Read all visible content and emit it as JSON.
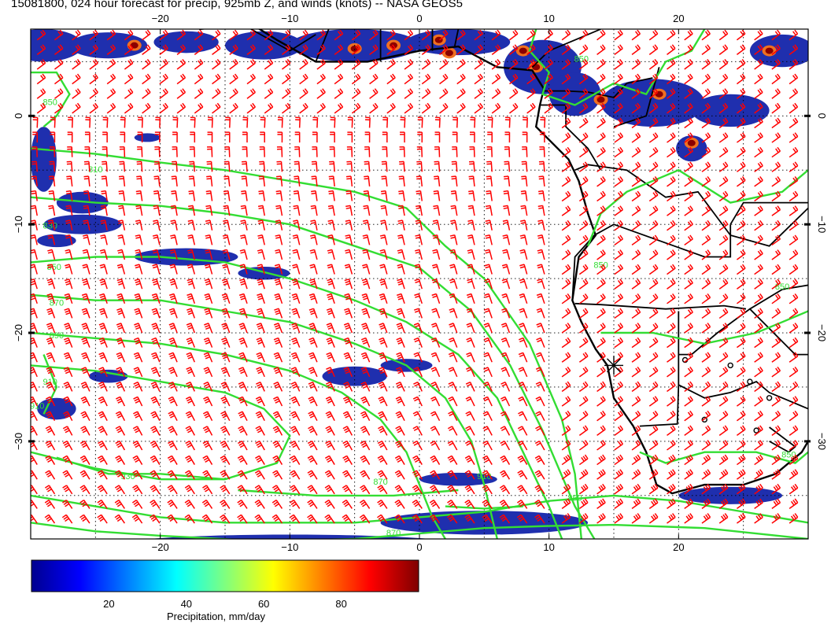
{
  "title": "15081800, 024 hour forecast for precip, 925mb Z, and winds (knots) -- NASA GEOS5",
  "map": {
    "lon_range": [
      -30,
      30
    ],
    "lat_range": [
      -39,
      8
    ],
    "lon_ticks": [
      -20,
      -10,
      0,
      10,
      20
    ],
    "lat_ticks": [
      0,
      -10,
      -20,
      -30
    ],
    "lon_tick_labels": [
      "−20",
      "−10",
      "0",
      "10",
      "20"
    ],
    "lat_tick_labels": [
      "0",
      "−10",
      "−20",
      "−30"
    ],
    "grid": "dotted",
    "marker_symbol": "asterisk",
    "marker_position": {
      "lon": 15,
      "lat": -23
    },
    "contour_labels": [
      "810",
      "830",
      "850",
      "870",
      "890",
      "910",
      "930"
    ],
    "colors": {
      "contour": "#33dd33",
      "wind_barbs": "#ff0000",
      "coastline": "#000000",
      "precip_low": "#1a1aa0"
    }
  },
  "colorbar": {
    "tick_values": [
      20,
      40,
      60,
      80
    ],
    "tick_labels": [
      "20",
      "40",
      "60",
      "80"
    ],
    "range": [
      0,
      100
    ],
    "label": "Precipitation, mm/day"
  }
}
